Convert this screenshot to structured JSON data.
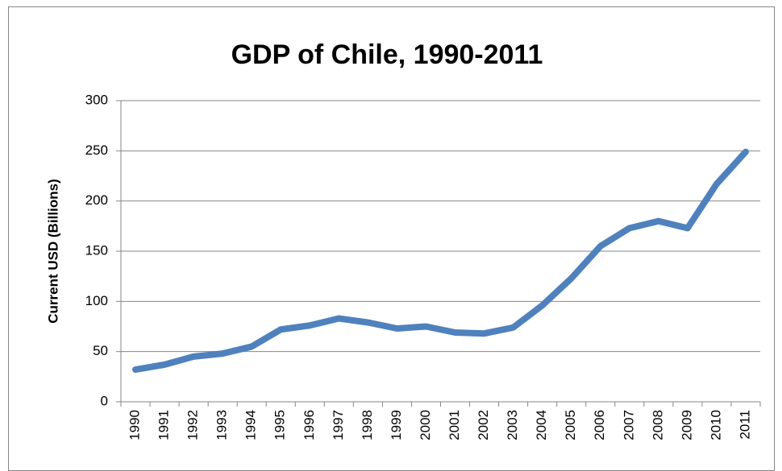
{
  "chart_data": {
    "type": "line",
    "title": "GDP of Chile, 1990-2011",
    "y_label": "Current USD (Billions)",
    "categories": [
      "1990",
      "1991",
      "1992",
      "1993",
      "1994",
      "1995",
      "1996",
      "1997",
      "1998",
      "1999",
      "2000",
      "2001",
      "2002",
      "2003",
      "2004",
      "2005",
      "2006",
      "2007",
      "2008",
      "2009",
      "2010",
      "2011"
    ],
    "series": [
      {
        "name": "GDP",
        "color": "#4f81bd",
        "values": [
          32,
          37,
          45,
          48,
          55,
          72,
          76,
          83,
          79,
          73,
          75,
          69,
          68,
          74,
          96,
          123,
          155,
          173,
          180,
          173,
          217,
          249
        ]
      }
    ],
    "ylim": [
      0,
      300
    ],
    "yticks": [
      0,
      50,
      100,
      150,
      200,
      250,
      300
    ],
    "grid": true
  }
}
